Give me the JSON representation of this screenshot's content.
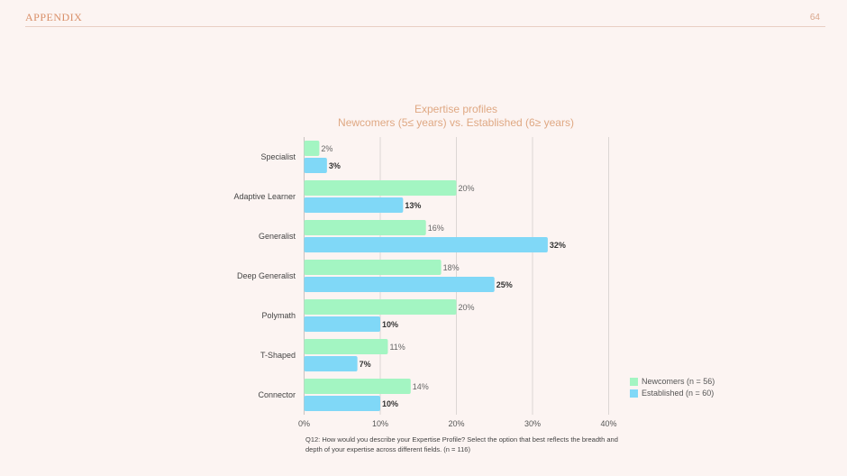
{
  "header": {
    "title": "APPENDIX",
    "page_number": "64"
  },
  "chart_data": {
    "type": "bar",
    "orientation": "horizontal",
    "title": "Expertise profiles",
    "subtitle": "Newcomers (5≤ years) vs. Established (6≥ years)",
    "categories": [
      "Specialist",
      "Adaptive Learner",
      "Generalist",
      "Deep Generalist",
      "Polymath",
      "T-Shaped",
      "Connector"
    ],
    "series": [
      {
        "name": "Newcomers (n = 56)",
        "color": "#a3f5c2",
        "values": [
          2,
          20,
          16,
          18,
          20,
          11,
          14
        ]
      },
      {
        "name": "Established (n = 60)",
        "color": "#80d8f7",
        "values": [
          3,
          13,
          32,
          25,
          10,
          7,
          10
        ]
      }
    ],
    "value_labels": [
      [
        "2%",
        "20%",
        "16%",
        "18%",
        "20%",
        "11%",
        "14%"
      ],
      [
        "3%",
        "13%",
        "32%",
        "25%",
        "10%",
        "7%",
        "10%"
      ]
    ],
    "xlim": [
      0,
      40
    ],
    "xticks": [
      "0%",
      "10%",
      "20%",
      "30%",
      "40%"
    ],
    "grid": true,
    "legend_position": "bottom-right"
  },
  "footnote": "Q12: How would you describe your Expertise Profile? Select the option that best reflects the breadth and depth of your expertise across different fields. (n = 116)"
}
